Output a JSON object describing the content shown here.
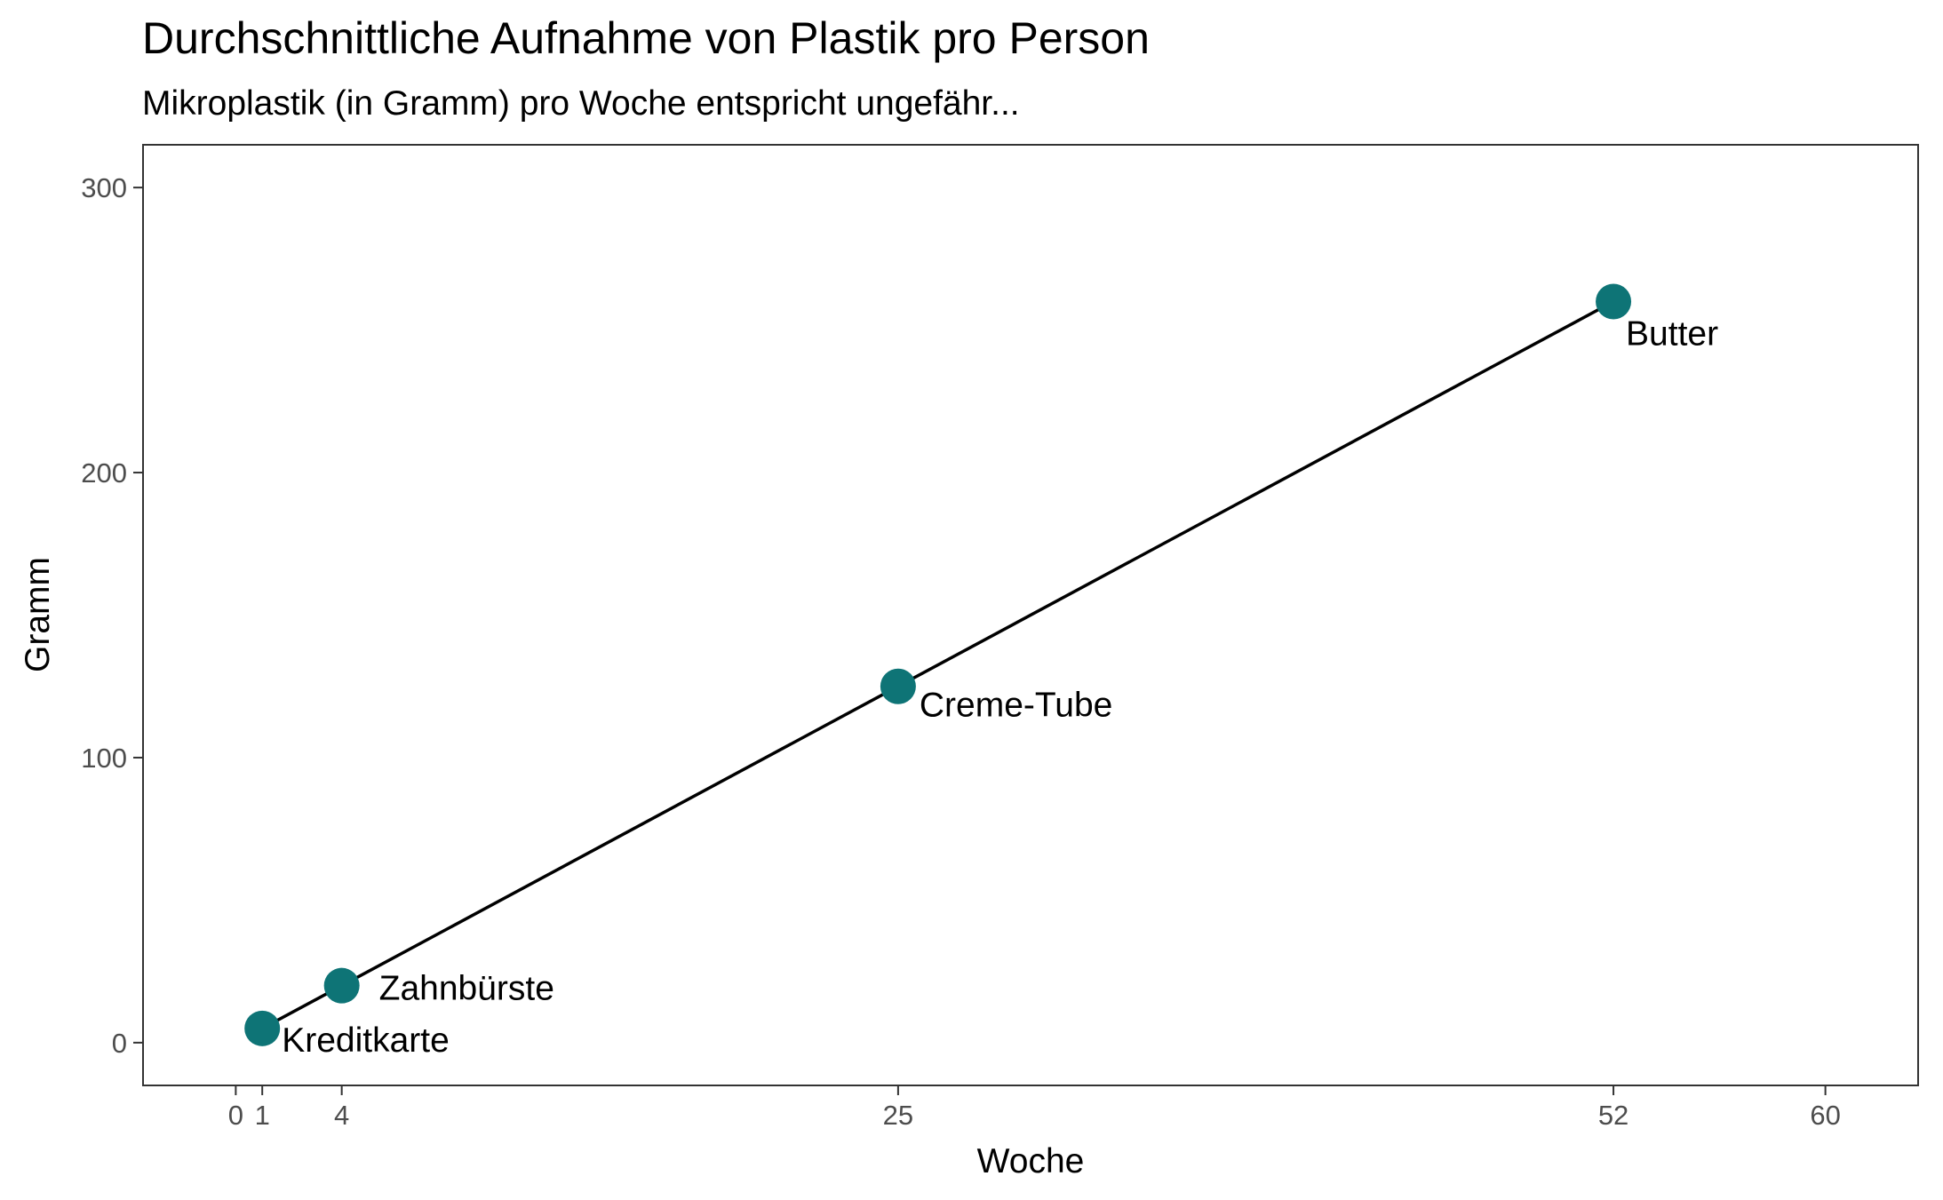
{
  "chart_data": {
    "type": "line",
    "title": "Durchschnittliche Aufnahme von Plastik pro Person",
    "subtitle": "Mikroplastik (in Gramm) pro Woche entspricht ungefähr...",
    "xlabel": "Woche",
    "ylabel": "Gramm",
    "xlim": [
      -3.5,
      63.5
    ],
    "ylim": [
      -15,
      315
    ],
    "x_ticks": [
      0,
      1,
      4,
      25,
      52,
      60
    ],
    "y_ticks": [
      0,
      100,
      200,
      300
    ],
    "grid": false,
    "series": [
      {
        "points": [
          {
            "x": 1,
            "y": 5,
            "label": "Kreditkarte"
          },
          {
            "x": 4,
            "y": 20,
            "label": "Zahnbürste"
          },
          {
            "x": 25,
            "y": 125,
            "label": "Creme-Tube"
          },
          {
            "x": 52,
            "y": 260,
            "label": "Butter"
          }
        ]
      }
    ],
    "colors": {
      "point": "#0e7476",
      "line": "#000000",
      "panel_border": "#333333",
      "tick_text": "#4d4d4d"
    }
  }
}
